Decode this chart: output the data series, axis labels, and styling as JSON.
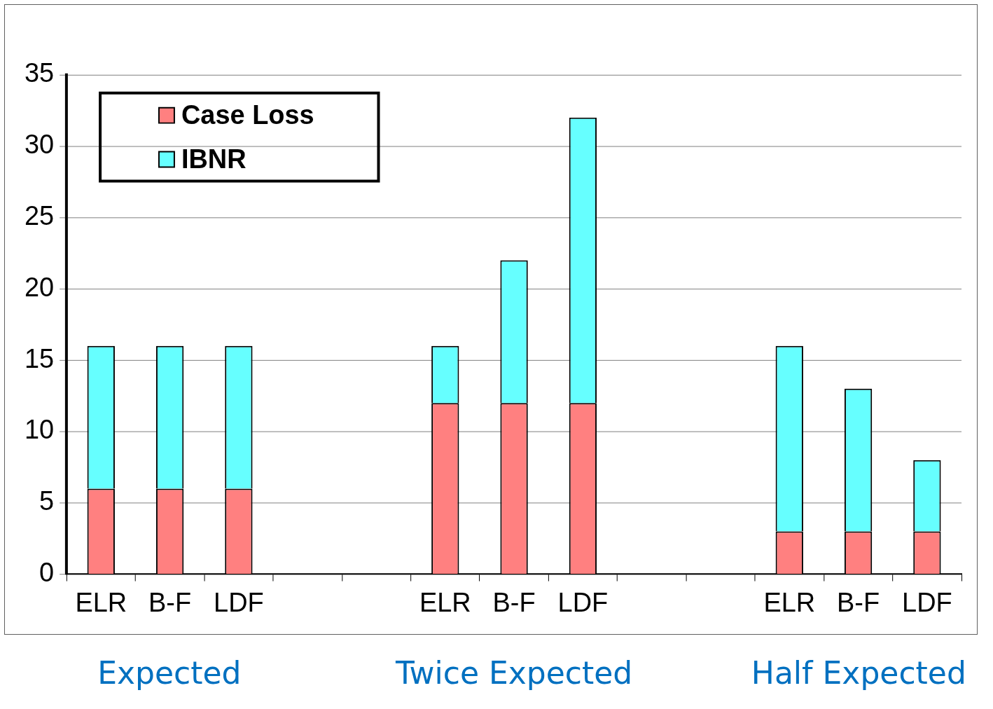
{
  "chart_data": {
    "type": "bar",
    "stacked": true,
    "categories": [
      "ELR",
      "B-F",
      "LDF",
      null,
      null,
      "ELR",
      "B-F",
      "LDF",
      null,
      null,
      "ELR",
      "B-F",
      "LDF"
    ],
    "series": [
      {
        "name": "Case Loss",
        "color": "#ff8080",
        "values": [
          6,
          6,
          6,
          null,
          null,
          12,
          12,
          12,
          null,
          null,
          3,
          3,
          3
        ]
      },
      {
        "name": "IBNR",
        "color": "#66ffff",
        "values": [
          10,
          10,
          10,
          null,
          null,
          4,
          10,
          20,
          null,
          null,
          13,
          10,
          5
        ]
      }
    ],
    "ylim": [
      0,
      35
    ],
    "yticks": [
      0,
      5,
      10,
      15,
      20,
      25,
      30,
      35
    ],
    "grid": "y",
    "legend": "top left",
    "annotations": [
      "Expected",
      "Twice Expected",
      "Half Expected"
    ]
  }
}
